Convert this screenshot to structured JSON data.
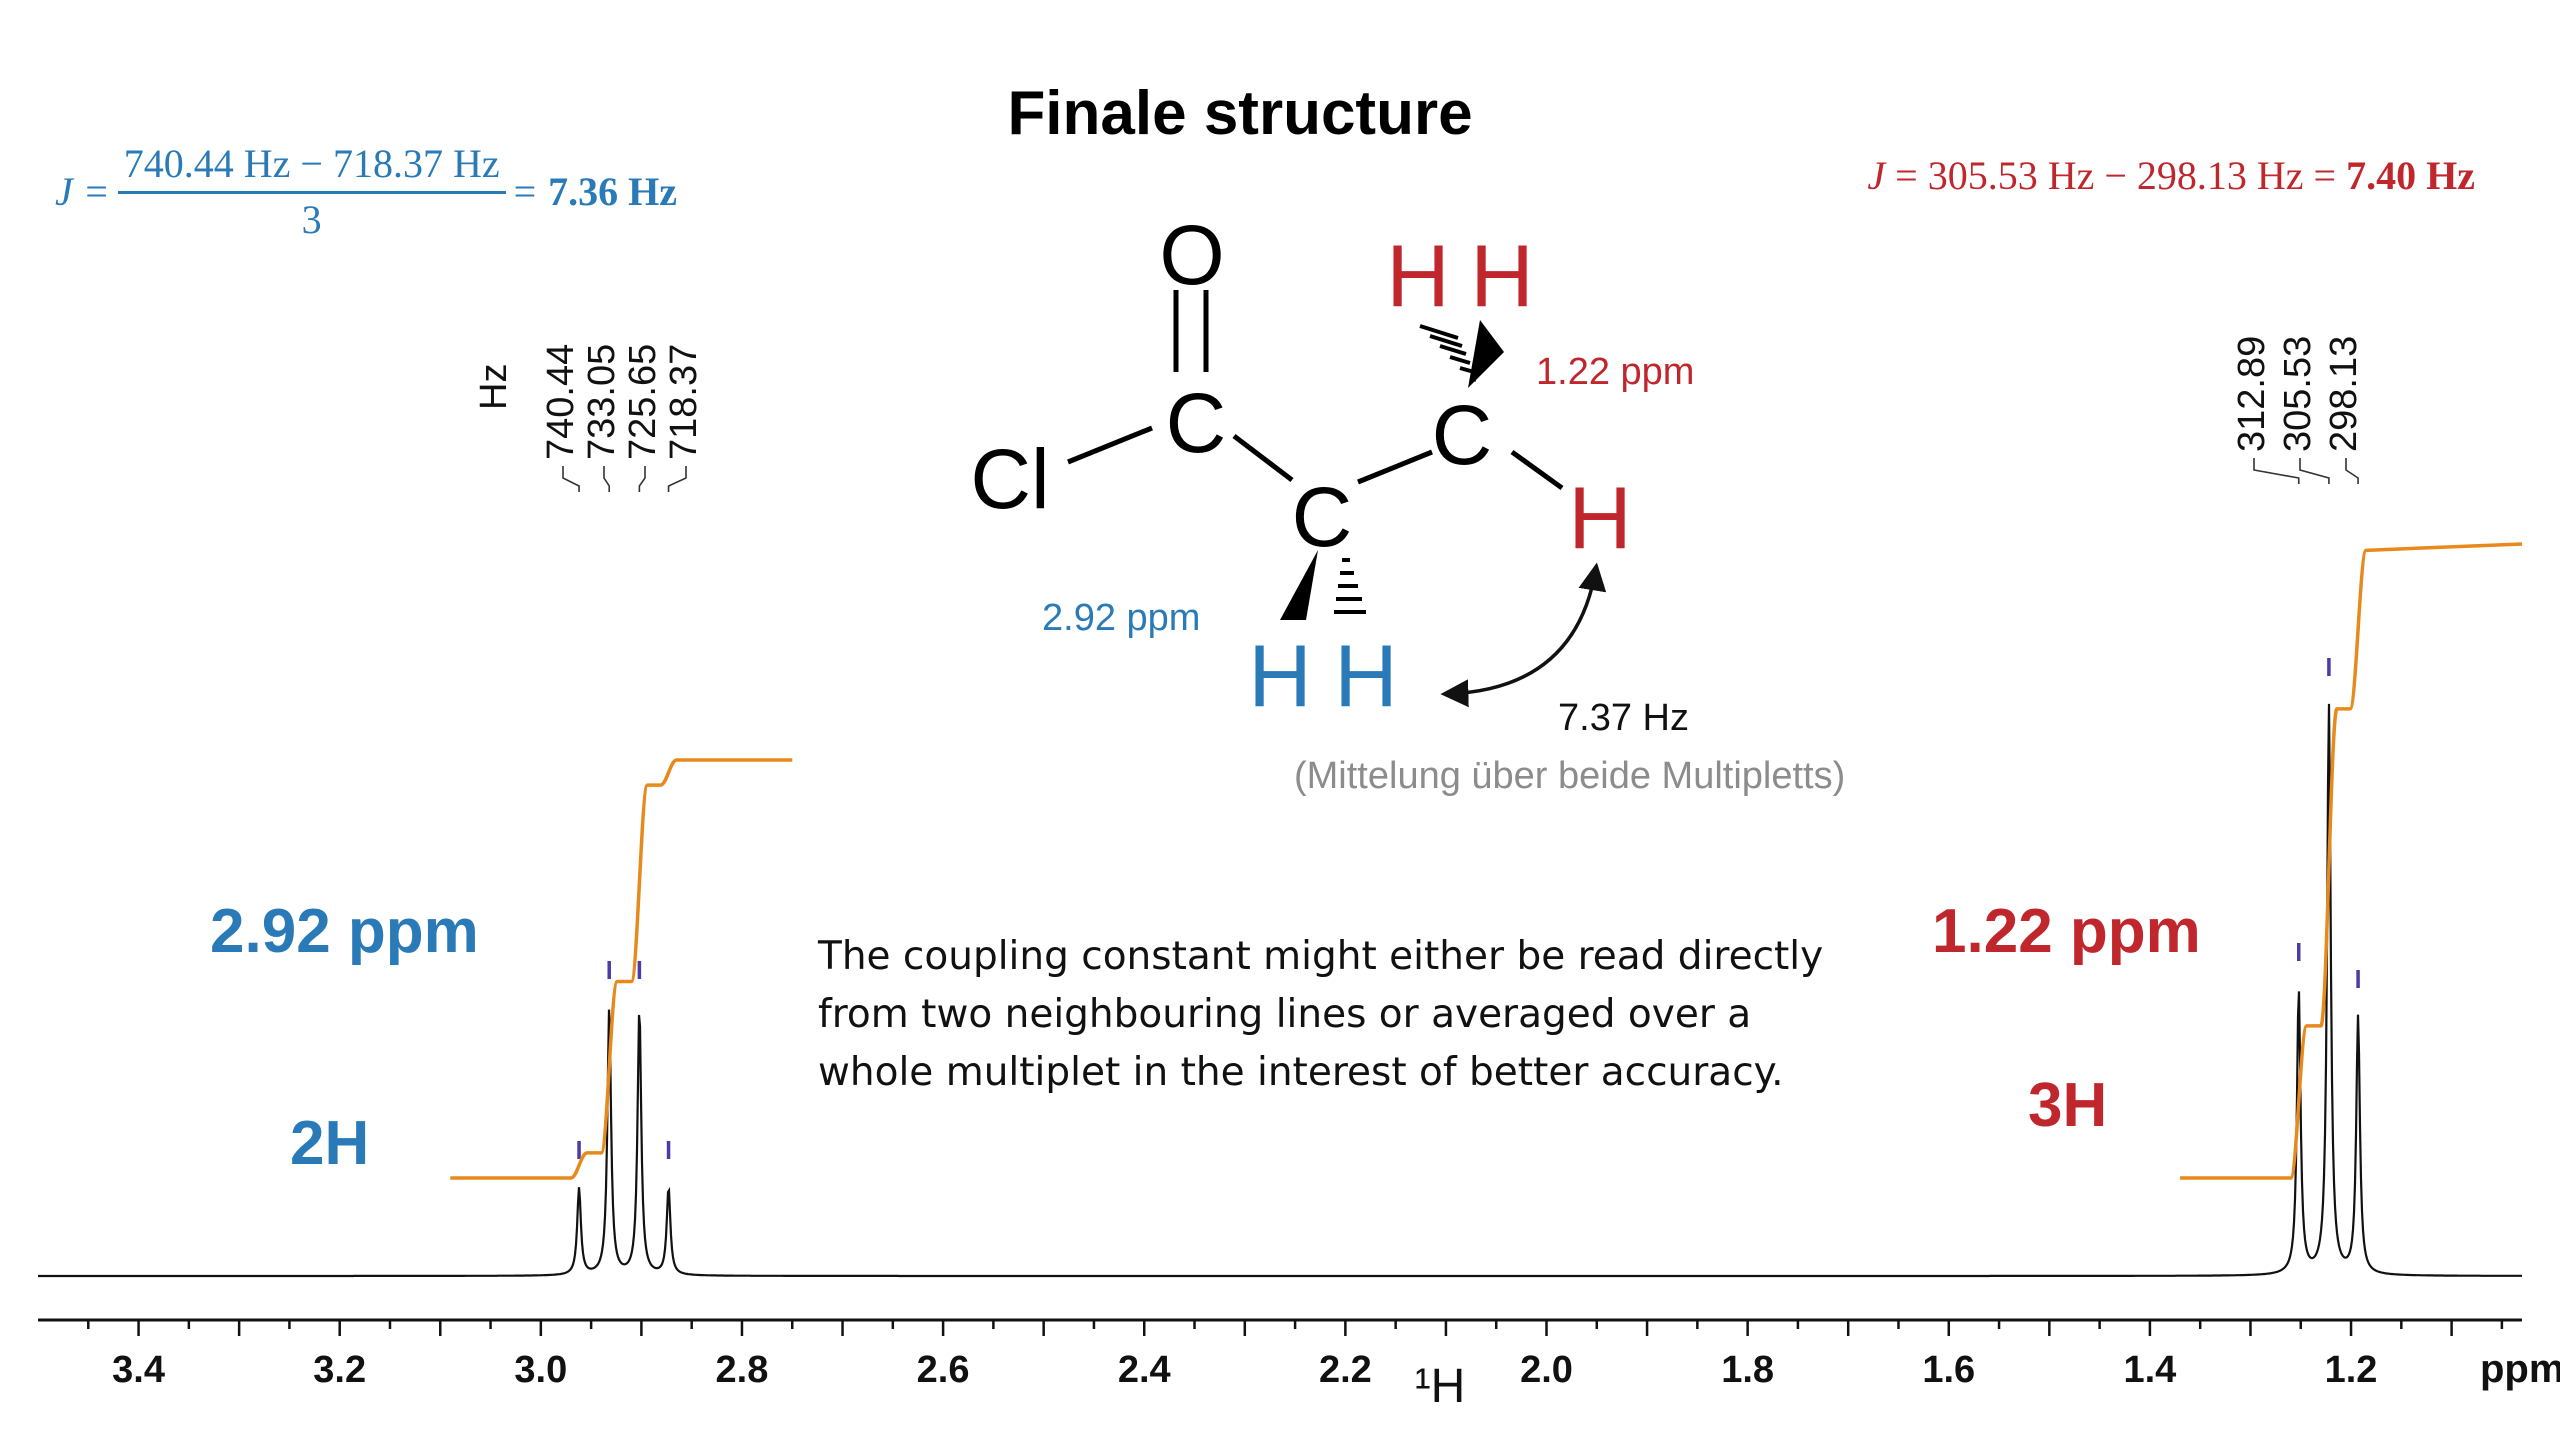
{
  "title": "Finale structure",
  "formula_left": {
    "lhs": "J =",
    "numerator": "740.44 Hz − 718.37 Hz",
    "denominator": "3",
    "eq": "=",
    "result": "7.36 Hz"
  },
  "formula_right": {
    "lhs": "J",
    "expression": "= 305.53 Hz − 298.13 Hz =",
    "result": "7.40 Hz"
  },
  "molecule": {
    "atoms": {
      "O": "O",
      "Cl": "Cl",
      "C": "C",
      "H": "H"
    },
    "ch2_shift": "2.92 ppm",
    "ch3_shift": "1.22 ppm",
    "coupling": "7.37 Hz",
    "coupling_note": "(Mittelung über beide Multipletts)"
  },
  "note": {
    "lines": [
      "The coupling constant might either be read directly",
      "from two neighbouring lines or averaged over a",
      "whole multiplet in the interest of better accuracy."
    ]
  },
  "colors": {
    "blue": "#2a7ab8",
    "red": "#c0272d",
    "integral": "#e8891c",
    "spectrum": "#111111",
    "peak_marker": "#4b3aa8"
  },
  "chart_data": {
    "type": "line",
    "title": "",
    "xlabel": "¹H",
    "x_unit": "ppm",
    "x_reversed": true,
    "xlim": [
      3.5,
      1.03
    ],
    "xticks": [
      "3.4",
      "3.2",
      "3.0",
      "2.8",
      "2.6",
      "2.4",
      "2.2",
      "2.0",
      "1.8",
      "1.6",
      "1.4",
      "1.2"
    ],
    "xtick_values": [
      3.4,
      3.2,
      3.0,
      2.8,
      2.6,
      2.4,
      2.2,
      2.0,
      1.8,
      1.6,
      1.4,
      1.2
    ],
    "peak_label_unit": "Hz",
    "multiplets": [
      {
        "name": "CH2",
        "shift_label": "2.92 ppm",
        "integral_label": "2H",
        "color": "#2a7ab8",
        "peaks_hz": [
          "740.44",
          "733.05",
          "725.65",
          "718.37"
        ],
        "peaks_ppm": [
          2.962,
          2.932,
          2.902,
          2.873
        ],
        "rel_heights": [
          0.29,
          0.89,
          0.89,
          0.29
        ],
        "integral_range_ppm": [
          3.09,
          2.75
        ],
        "integral_steps_ppm": [
          2.962,
          2.932,
          2.902,
          2.873
        ],
        "integral_levels": [
          0,
          0.06,
          0.47,
          0.94,
          1.0
        ]
      },
      {
        "name": "CH3",
        "shift_label": "1.22 ppm",
        "integral_label": "3H",
        "color": "#c0272d",
        "peaks_hz": [
          "312.89",
          "305.53",
          "298.13"
        ],
        "peaks_ppm": [
          1.252,
          1.222,
          1.193
        ],
        "rel_heights": [
          0.95,
          1.9,
          0.86
        ],
        "integral_range_ppm": [
          1.37,
          1.03
        ],
        "integral_steps_ppm": [
          1.252,
          1.222,
          1.193
        ],
        "integral_levels": [
          0,
          0.24,
          0.74,
          0.99,
          1.0
        ]
      }
    ]
  }
}
